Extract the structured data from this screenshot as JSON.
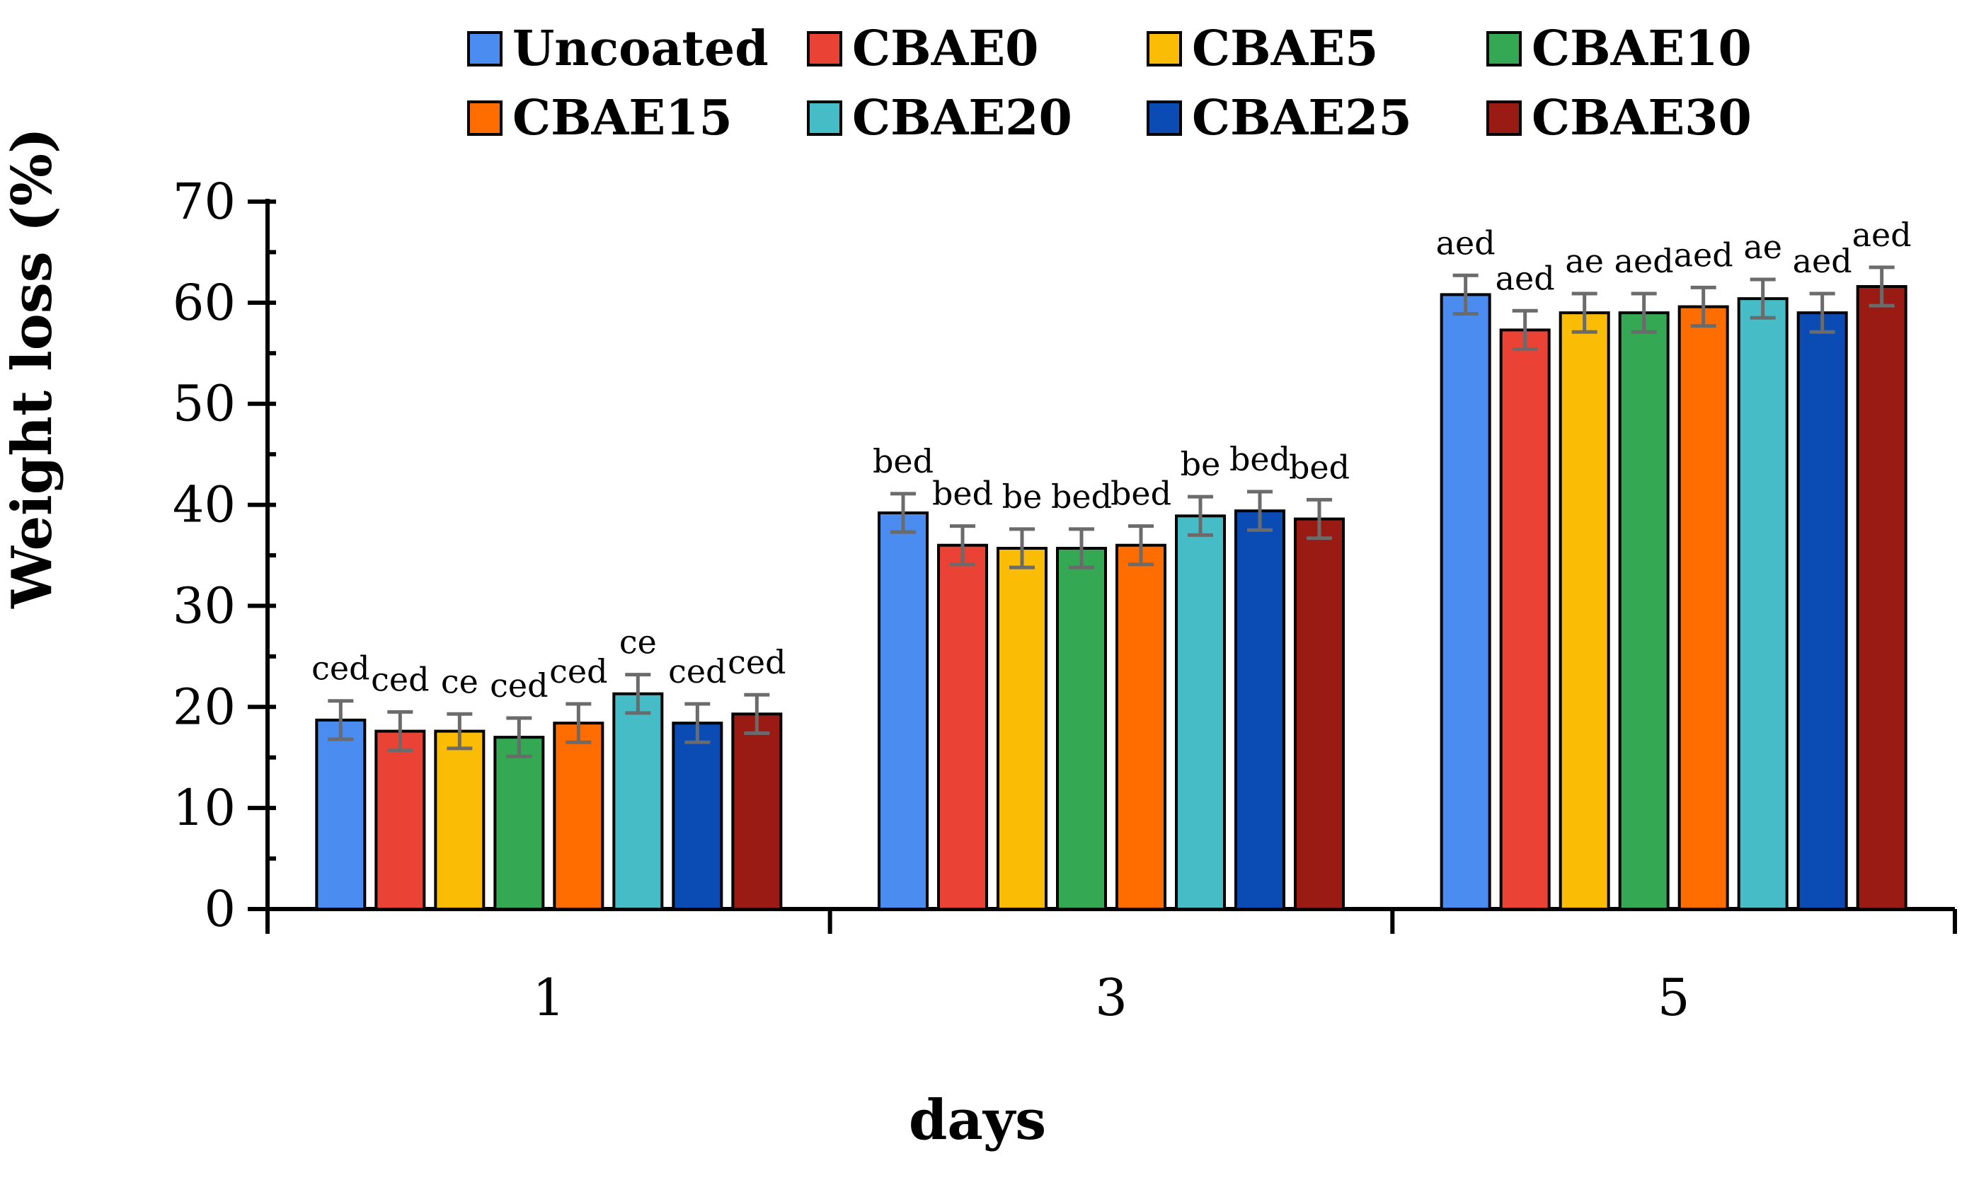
{
  "chart_data": {
    "type": "bar",
    "title": "",
    "xlabel": "days",
    "ylabel": "Weight loss (%)",
    "ylim": [
      0,
      70
    ],
    "yticks": [
      "0",
      "10",
      "20",
      "30",
      "40",
      "50",
      "60",
      "70"
    ],
    "categories": [
      "1",
      "3",
      "5"
    ],
    "legend_position": "top",
    "series": [
      {
        "name": "Uncoated",
        "color": "#4a8cf0",
        "values": [
          18.7,
          39.2,
          60.8
        ],
        "errors": [
          1.9,
          1.9,
          1.9
        ],
        "letters": [
          "ced",
          "bed",
          "aed"
        ]
      },
      {
        "name": "CBAE0",
        "color": "#ea4335",
        "values": [
          17.6,
          36.0,
          57.3
        ],
        "errors": [
          1.9,
          1.9,
          1.9
        ],
        "letters": [
          "ced",
          "bed",
          "aed"
        ]
      },
      {
        "name": "CBAE5",
        "color": "#fbbc05",
        "values": [
          17.6,
          35.7,
          59.0
        ],
        "errors": [
          1.7,
          1.9,
          1.9
        ],
        "letters": [
          "ce",
          "be",
          "ae"
        ]
      },
      {
        "name": "CBAE10",
        "color": "#34a853",
        "values": [
          17.0,
          35.7,
          59.0
        ],
        "errors": [
          1.9,
          1.9,
          1.9
        ],
        "letters": [
          "ced",
          "bed",
          "aed"
        ]
      },
      {
        "name": "CBAE15",
        "color": "#ff6d01",
        "values": [
          18.4,
          36.0,
          59.6
        ],
        "errors": [
          1.9,
          1.9,
          1.9
        ],
        "letters": [
          "ced",
          "bed",
          "aed"
        ]
      },
      {
        "name": "CBAE20",
        "color": "#46bdc6",
        "values": [
          21.3,
          38.9,
          60.4
        ],
        "errors": [
          1.9,
          1.9,
          1.9
        ],
        "letters": [
          "ce",
          "be",
          "ae"
        ]
      },
      {
        "name": "CBAE25",
        "color": "#0b4cb4",
        "values": [
          18.4,
          39.4,
          59.0
        ],
        "errors": [
          1.9,
          1.9,
          1.9
        ],
        "letters": [
          "ced",
          "bed",
          "aed"
        ]
      },
      {
        "name": "CBAE30",
        "color": "#991b13",
        "values": [
          19.3,
          38.6,
          61.6
        ],
        "errors": [
          1.9,
          1.9,
          1.9
        ],
        "letters": [
          "ced",
          "bed",
          "aed"
        ]
      }
    ],
    "error_bar_color": "#6b6b6b"
  }
}
